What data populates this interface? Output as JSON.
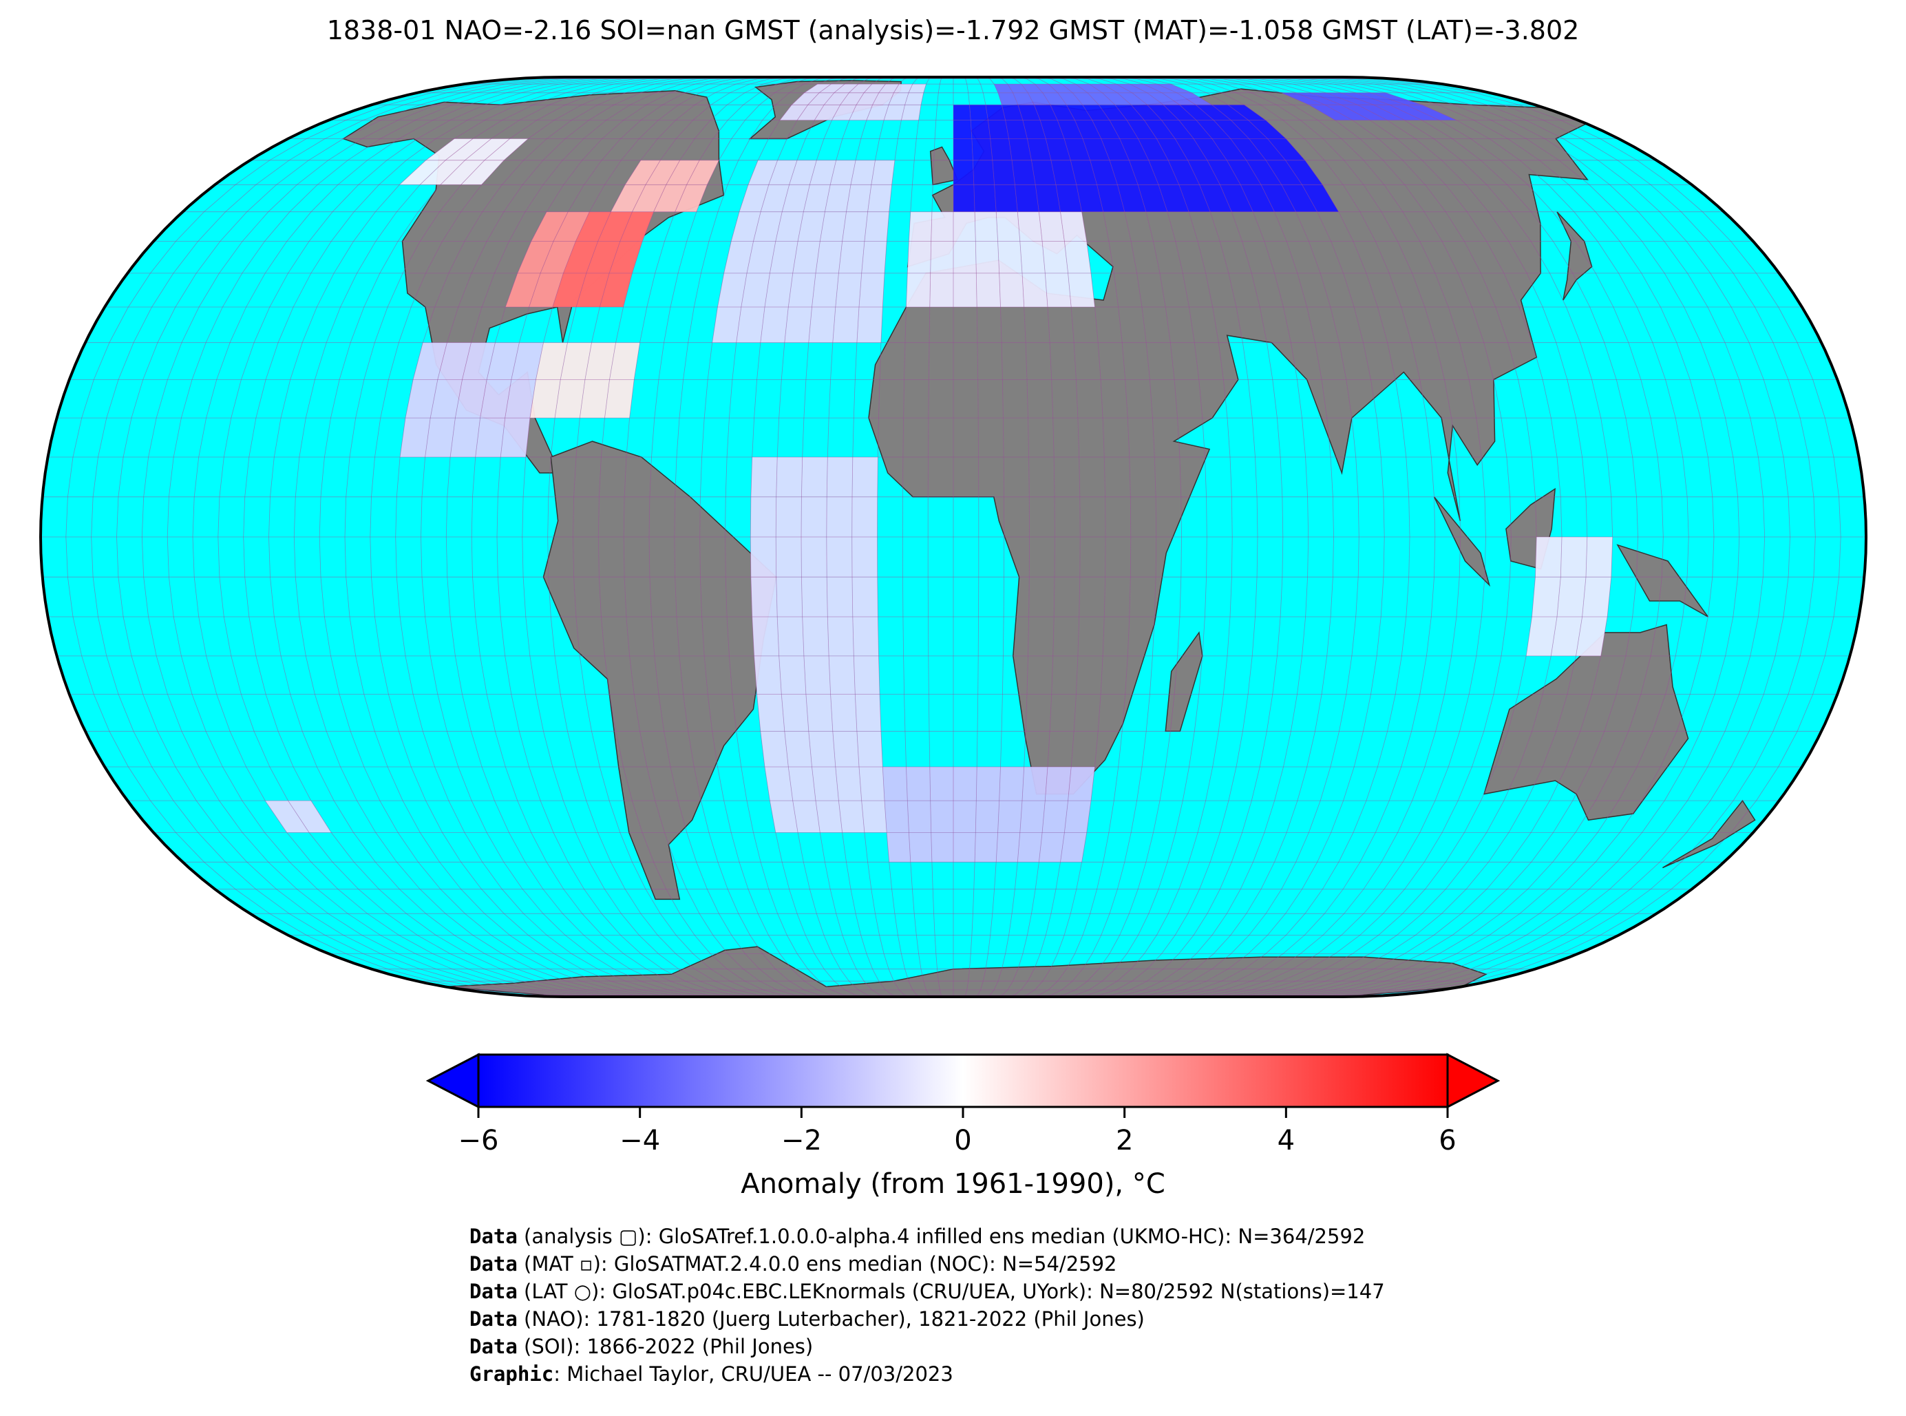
{
  "title": "1838-01 NAO=-2.16 SOI=nan GMST (analysis)=-1.792 GMST (MAT)=-1.058 GMST (LAT)=-3.802",
  "colors": {
    "ocean": "#00ffff",
    "land": "#808080",
    "grid": "#9a4a9a",
    "cold": "#0000ff",
    "warm": "#ff0000",
    "neutral": "#ffffff"
  },
  "colorbar": {
    "min": -6,
    "max": 6,
    "ticks": [
      "−6",
      "−4",
      "−2",
      "0",
      "2",
      "4",
      "6"
    ],
    "label": "Anomaly (from 1961-1990), °C"
  },
  "anomaly_cells": [
    {
      "region": "western-north-america",
      "lon": [
        -135,
        -115
      ],
      "lat": [
        50,
        60
      ],
      "anomaly": -0.3
    },
    {
      "region": "eastern-north-america",
      "lon": [
        -95,
        -70
      ],
      "lat": [
        30,
        45
      ],
      "anomaly": 2.5
    },
    {
      "region": "eastern-north-america-core",
      "lon": [
        -85,
        -70
      ],
      "lat": [
        30,
        45
      ],
      "anomaly": 3.5
    },
    {
      "region": "canada-east",
      "lon": [
        -80,
        -60
      ],
      "lat": [
        45,
        55
      ],
      "anomaly": 1.5
    },
    {
      "region": "central-america",
      "lon": [
        -110,
        -85
      ],
      "lat": [
        10,
        25
      ],
      "anomaly": -1.0
    },
    {
      "region": "caribbean",
      "lon": [
        -85,
        -65
      ],
      "lat": [
        15,
        25
      ],
      "anomaly": 0.5
    },
    {
      "region": "greenland",
      "lon": [
        -50,
        -10
      ],
      "lat": [
        65,
        80
      ],
      "anomaly": -0.8
    },
    {
      "region": "north-atlantic",
      "lon": [
        -50,
        -15
      ],
      "lat": [
        25,
        55
      ],
      "anomaly": -0.8
    },
    {
      "region": "europe-russia",
      "lon": [
        0,
        90
      ],
      "lat": [
        45,
        70
      ],
      "anomaly": -5.5
    },
    {
      "region": "scandinavia-north",
      "lon": [
        15,
        80
      ],
      "lat": [
        70,
        80
      ],
      "anomaly": -3.5
    },
    {
      "region": "mediterranean",
      "lon": [
        -10,
        30
      ],
      "lat": [
        30,
        45
      ],
      "anomaly": -0.5
    },
    {
      "region": "siberia-east",
      "lon": [
        110,
        145
      ],
      "lat": [
        65,
        75
      ],
      "anomaly": -4.0
    },
    {
      "region": "south-atlantic",
      "lon": [
        -40,
        -15
      ],
      "lat": [
        -40,
        10
      ],
      "anomaly": -0.8
    },
    {
      "region": "south-atlantic-east",
      "lon": [
        -15,
        30
      ],
      "lat": [
        -45,
        -30
      ],
      "anomaly": -1.3
    },
    {
      "region": "indonesia",
      "lon": [
        115,
        130
      ],
      "lat": [
        -15,
        0
      ],
      "anomaly": -0.5
    },
    {
      "region": "south-pacific",
      "lon": [
        -150,
        -140
      ],
      "lat": [
        -40,
        -35
      ],
      "anomaly": -0.8
    }
  ],
  "credits": [
    {
      "bold": "Data",
      "text": " (analysis ▢): GloSATref.1.0.0.0-alpha.4 infilled ens median (UKMO-HC): N=364/2592"
    },
    {
      "bold": "Data",
      "text": " (MAT ▫): GloSATMAT.2.4.0.0 ens median (NOC): N=54/2592"
    },
    {
      "bold": "Data",
      "text": " (LAT ○): GloSAT.p04c.EBC.LEKnormals (CRU/UEA, UYork): N=80/2592 N(stations)=147"
    },
    {
      "bold": "Data",
      "text": " (NAO): 1781-1820 (Juerg Luterbacher), 1821-2022 (Phil Jones)"
    },
    {
      "bold": "Data",
      "text": " (SOI): 1866-2022 (Phil Jones)"
    },
    {
      "bold": "Graphic",
      "text": ": Michael Taylor, CRU/UEA -- 07/03/2023"
    }
  ]
}
